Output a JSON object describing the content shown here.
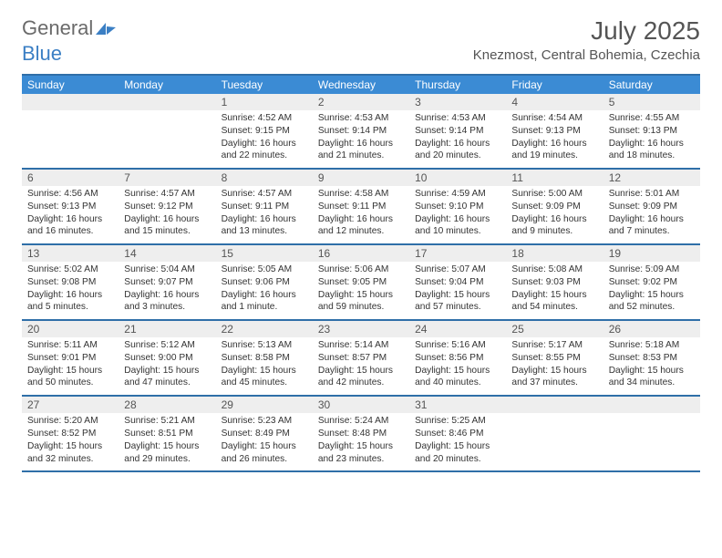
{
  "brand": {
    "part1": "General",
    "part2": "Blue"
  },
  "title": "July 2025",
  "location": "Knezmost, Central Bohemia, Czechia",
  "colors": {
    "header_bg": "#3b8bd4",
    "header_text": "#ffffff",
    "rule": "#2f6fa8",
    "strip_bg": "#eeeeee",
    "body_text": "#333333",
    "title_text": "#555555",
    "brand_gray": "#6a6a6a",
    "brand_blue": "#3b7fc4"
  },
  "dow": [
    "Sunday",
    "Monday",
    "Tuesday",
    "Wednesday",
    "Thursday",
    "Friday",
    "Saturday"
  ],
  "weeks": [
    [
      {
        "n": "",
        "l": []
      },
      {
        "n": "",
        "l": []
      },
      {
        "n": "1",
        "l": [
          "Sunrise: 4:52 AM",
          "Sunset: 9:15 PM",
          "Daylight: 16 hours",
          "and 22 minutes."
        ]
      },
      {
        "n": "2",
        "l": [
          "Sunrise: 4:53 AM",
          "Sunset: 9:14 PM",
          "Daylight: 16 hours",
          "and 21 minutes."
        ]
      },
      {
        "n": "3",
        "l": [
          "Sunrise: 4:53 AM",
          "Sunset: 9:14 PM",
          "Daylight: 16 hours",
          "and 20 minutes."
        ]
      },
      {
        "n": "4",
        "l": [
          "Sunrise: 4:54 AM",
          "Sunset: 9:13 PM",
          "Daylight: 16 hours",
          "and 19 minutes."
        ]
      },
      {
        "n": "5",
        "l": [
          "Sunrise: 4:55 AM",
          "Sunset: 9:13 PM",
          "Daylight: 16 hours",
          "and 18 minutes."
        ]
      }
    ],
    [
      {
        "n": "6",
        "l": [
          "Sunrise: 4:56 AM",
          "Sunset: 9:13 PM",
          "Daylight: 16 hours",
          "and 16 minutes."
        ]
      },
      {
        "n": "7",
        "l": [
          "Sunrise: 4:57 AM",
          "Sunset: 9:12 PM",
          "Daylight: 16 hours",
          "and 15 minutes."
        ]
      },
      {
        "n": "8",
        "l": [
          "Sunrise: 4:57 AM",
          "Sunset: 9:11 PM",
          "Daylight: 16 hours",
          "and 13 minutes."
        ]
      },
      {
        "n": "9",
        "l": [
          "Sunrise: 4:58 AM",
          "Sunset: 9:11 PM",
          "Daylight: 16 hours",
          "and 12 minutes."
        ]
      },
      {
        "n": "10",
        "l": [
          "Sunrise: 4:59 AM",
          "Sunset: 9:10 PM",
          "Daylight: 16 hours",
          "and 10 minutes."
        ]
      },
      {
        "n": "11",
        "l": [
          "Sunrise: 5:00 AM",
          "Sunset: 9:09 PM",
          "Daylight: 16 hours",
          "and 9 minutes."
        ]
      },
      {
        "n": "12",
        "l": [
          "Sunrise: 5:01 AM",
          "Sunset: 9:09 PM",
          "Daylight: 16 hours",
          "and 7 minutes."
        ]
      }
    ],
    [
      {
        "n": "13",
        "l": [
          "Sunrise: 5:02 AM",
          "Sunset: 9:08 PM",
          "Daylight: 16 hours",
          "and 5 minutes."
        ]
      },
      {
        "n": "14",
        "l": [
          "Sunrise: 5:04 AM",
          "Sunset: 9:07 PM",
          "Daylight: 16 hours",
          "and 3 minutes."
        ]
      },
      {
        "n": "15",
        "l": [
          "Sunrise: 5:05 AM",
          "Sunset: 9:06 PM",
          "Daylight: 16 hours",
          "and 1 minute."
        ]
      },
      {
        "n": "16",
        "l": [
          "Sunrise: 5:06 AM",
          "Sunset: 9:05 PM",
          "Daylight: 15 hours",
          "and 59 minutes."
        ]
      },
      {
        "n": "17",
        "l": [
          "Sunrise: 5:07 AM",
          "Sunset: 9:04 PM",
          "Daylight: 15 hours",
          "and 57 minutes."
        ]
      },
      {
        "n": "18",
        "l": [
          "Sunrise: 5:08 AM",
          "Sunset: 9:03 PM",
          "Daylight: 15 hours",
          "and 54 minutes."
        ]
      },
      {
        "n": "19",
        "l": [
          "Sunrise: 5:09 AM",
          "Sunset: 9:02 PM",
          "Daylight: 15 hours",
          "and 52 minutes."
        ]
      }
    ],
    [
      {
        "n": "20",
        "l": [
          "Sunrise: 5:11 AM",
          "Sunset: 9:01 PM",
          "Daylight: 15 hours",
          "and 50 minutes."
        ]
      },
      {
        "n": "21",
        "l": [
          "Sunrise: 5:12 AM",
          "Sunset: 9:00 PM",
          "Daylight: 15 hours",
          "and 47 minutes."
        ]
      },
      {
        "n": "22",
        "l": [
          "Sunrise: 5:13 AM",
          "Sunset: 8:58 PM",
          "Daylight: 15 hours",
          "and 45 minutes."
        ]
      },
      {
        "n": "23",
        "l": [
          "Sunrise: 5:14 AM",
          "Sunset: 8:57 PM",
          "Daylight: 15 hours",
          "and 42 minutes."
        ]
      },
      {
        "n": "24",
        "l": [
          "Sunrise: 5:16 AM",
          "Sunset: 8:56 PM",
          "Daylight: 15 hours",
          "and 40 minutes."
        ]
      },
      {
        "n": "25",
        "l": [
          "Sunrise: 5:17 AM",
          "Sunset: 8:55 PM",
          "Daylight: 15 hours",
          "and 37 minutes."
        ]
      },
      {
        "n": "26",
        "l": [
          "Sunrise: 5:18 AM",
          "Sunset: 8:53 PM",
          "Daylight: 15 hours",
          "and 34 minutes."
        ]
      }
    ],
    [
      {
        "n": "27",
        "l": [
          "Sunrise: 5:20 AM",
          "Sunset: 8:52 PM",
          "Daylight: 15 hours",
          "and 32 minutes."
        ]
      },
      {
        "n": "28",
        "l": [
          "Sunrise: 5:21 AM",
          "Sunset: 8:51 PM",
          "Daylight: 15 hours",
          "and 29 minutes."
        ]
      },
      {
        "n": "29",
        "l": [
          "Sunrise: 5:23 AM",
          "Sunset: 8:49 PM",
          "Daylight: 15 hours",
          "and 26 minutes."
        ]
      },
      {
        "n": "30",
        "l": [
          "Sunrise: 5:24 AM",
          "Sunset: 8:48 PM",
          "Daylight: 15 hours",
          "and 23 minutes."
        ]
      },
      {
        "n": "31",
        "l": [
          "Sunrise: 5:25 AM",
          "Sunset: 8:46 PM",
          "Daylight: 15 hours",
          "and 20 minutes."
        ]
      },
      {
        "n": "",
        "l": []
      },
      {
        "n": "",
        "l": []
      }
    ]
  ]
}
